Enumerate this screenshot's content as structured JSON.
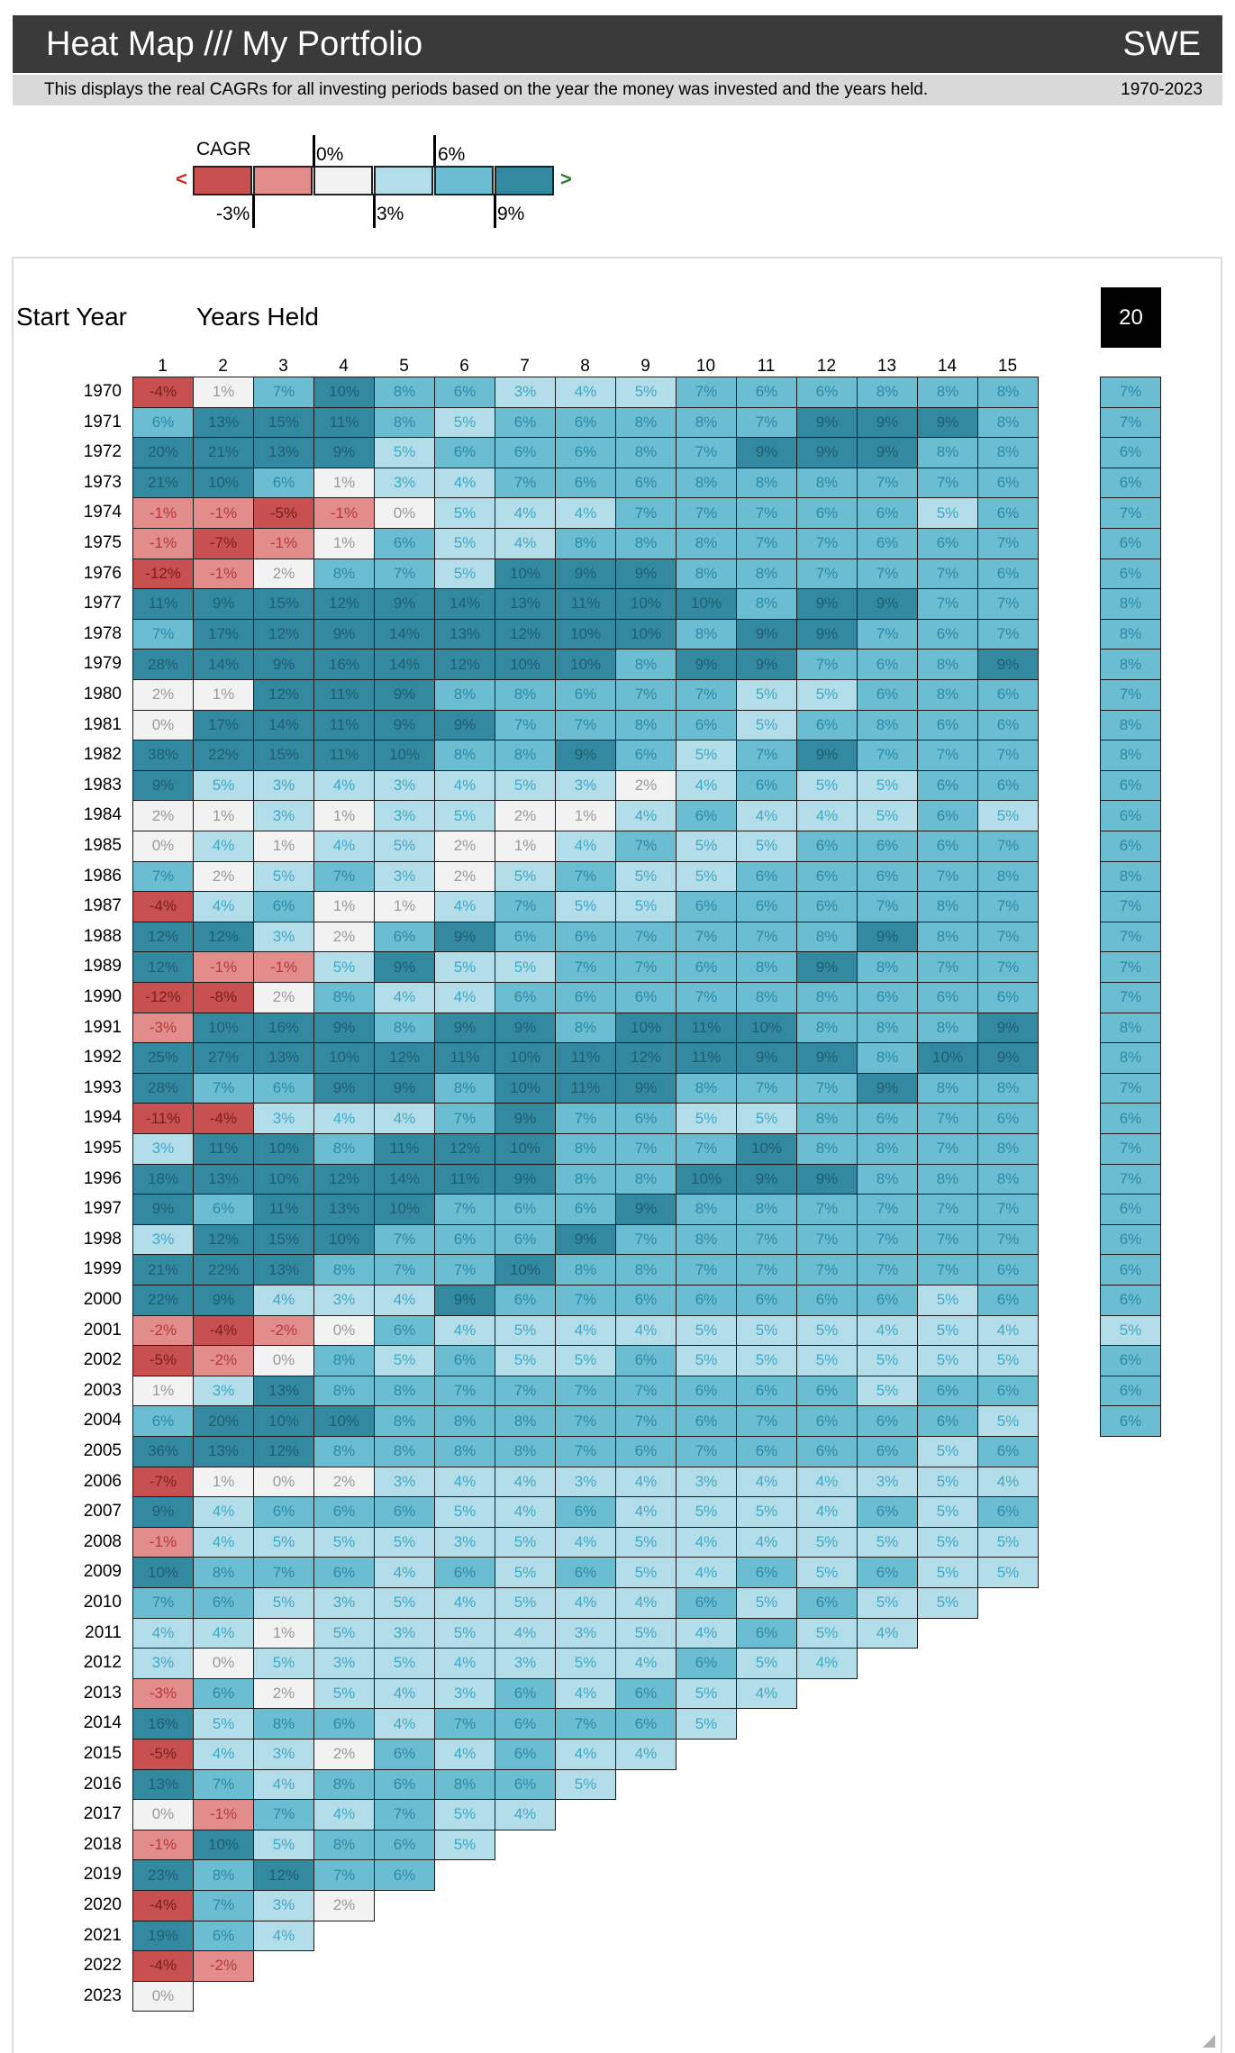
{
  "header": {
    "title": "Heat Map /// My Portfolio",
    "country": "SWE"
  },
  "subheader": {
    "description": "This displays the real CAGRs for all investing periods based on the year the money was invested and the years held.",
    "year_range": "1970-2023"
  },
  "legend": {
    "title": "CAGR",
    "left_arrow": "<",
    "right_arrow": ">",
    "top_labels": [
      "0%",
      "6%"
    ],
    "bottom_labels": [
      "-3%",
      "3%",
      "9%"
    ],
    "colors": [
      "#c85050",
      "#e38c8c",
      "#f2f2f2",
      "#b3dde8",
      "#6bbdd2",
      "#33899f"
    ]
  },
  "labels": {
    "start_year": "Start Year",
    "years_held": "Years Held"
  },
  "period_badge": "20",
  "chart_data": {
    "type": "heatmap",
    "title": "Heat Map /// My Portfolio",
    "xlabel": "Years Held",
    "ylabel": "Start Year",
    "col_headers": [
      "1",
      "2",
      "3",
      "4",
      "5",
      "6",
      "7",
      "8",
      "9",
      "10",
      "11",
      "12",
      "13",
      "14",
      "15"
    ],
    "rows": [
      {
        "year": "1970",
        "values": [
          -4,
          1,
          7,
          10,
          8,
          6,
          3,
          4,
          5,
          7,
          6,
          6,
          8,
          8,
          8
        ]
      },
      {
        "year": "1971",
        "values": [
          6,
          13,
          15,
          11,
          8,
          5,
          6,
          6,
          8,
          8,
          7,
          9,
          9,
          9,
          8
        ]
      },
      {
        "year": "1972",
        "values": [
          20,
          21,
          13,
          9,
          5,
          6,
          6,
          6,
          8,
          7,
          9,
          9,
          9,
          8,
          8
        ]
      },
      {
        "year": "1973",
        "values": [
          21,
          10,
          6,
          1,
          3,
          4,
          7,
          6,
          6,
          8,
          8,
          8,
          7,
          7,
          6
        ]
      },
      {
        "year": "1974",
        "values": [
          -1,
          -1,
          -5,
          -1,
          0,
          5,
          4,
          4,
          7,
          7,
          7,
          6,
          6,
          5,
          6
        ]
      },
      {
        "year": "1975",
        "values": [
          -1,
          -7,
          -1,
          1,
          6,
          5,
          4,
          8,
          8,
          8,
          7,
          7,
          6,
          6,
          7
        ]
      },
      {
        "year": "1976",
        "values": [
          -12,
          -1,
          2,
          8,
          7,
          5,
          10,
          9,
          9,
          8,
          8,
          7,
          7,
          7,
          6
        ]
      },
      {
        "year": "1977",
        "values": [
          11,
          9,
          15,
          12,
          9,
          14,
          13,
          11,
          10,
          10,
          8,
          9,
          9,
          7,
          7
        ]
      },
      {
        "year": "1978",
        "values": [
          7,
          17,
          12,
          9,
          14,
          13,
          12,
          10,
          10,
          8,
          9,
          9,
          7,
          6,
          7
        ]
      },
      {
        "year": "1979",
        "values": [
          28,
          14,
          9,
          16,
          14,
          12,
          10,
          10,
          8,
          9,
          9,
          7,
          6,
          8,
          9
        ]
      },
      {
        "year": "1980",
        "values": [
          2,
          1,
          12,
          11,
          9,
          8,
          8,
          6,
          7,
          7,
          5,
          5,
          6,
          8,
          6
        ]
      },
      {
        "year": "1981",
        "values": [
          0,
          17,
          14,
          11,
          9,
          9,
          7,
          7,
          8,
          6,
          5,
          6,
          8,
          6,
          6
        ]
      },
      {
        "year": "1982",
        "values": [
          38,
          22,
          15,
          11,
          10,
          8,
          8,
          9,
          6,
          5,
          7,
          9,
          7,
          7,
          7
        ]
      },
      {
        "year": "1983",
        "values": [
          9,
          5,
          3,
          4,
          3,
          4,
          5,
          3,
          2,
          4,
          6,
          5,
          5,
          6,
          6
        ]
      },
      {
        "year": "1984",
        "values": [
          2,
          1,
          3,
          1,
          3,
          5,
          2,
          1,
          4,
          6,
          4,
          4,
          5,
          6,
          5
        ]
      },
      {
        "year": "1985",
        "values": [
          0,
          4,
          1,
          4,
          5,
          2,
          1,
          4,
          7,
          5,
          5,
          6,
          6,
          6,
          7
        ]
      },
      {
        "year": "1986",
        "values": [
          7,
          2,
          5,
          7,
          3,
          2,
          5,
          7,
          5,
          5,
          6,
          6,
          6,
          7,
          8
        ]
      },
      {
        "year": "1987",
        "values": [
          -4,
          4,
          6,
          1,
          1,
          4,
          7,
          5,
          5,
          6,
          6,
          6,
          7,
          8,
          7
        ]
      },
      {
        "year": "1988",
        "values": [
          12,
          12,
          3,
          2,
          6,
          9,
          6,
          6,
          7,
          7,
          7,
          8,
          9,
          8,
          7
        ]
      },
      {
        "year": "1989",
        "values": [
          12,
          -1,
          -1,
          5,
          9,
          5,
          5,
          7,
          7,
          6,
          8,
          9,
          8,
          7,
          7
        ]
      },
      {
        "year": "1990",
        "values": [
          -12,
          -8,
          2,
          8,
          4,
          4,
          6,
          6,
          6,
          7,
          8,
          8,
          6,
          6,
          6
        ]
      },
      {
        "year": "1991",
        "values": [
          -3,
          10,
          16,
          9,
          8,
          9,
          9,
          8,
          10,
          11,
          10,
          8,
          8,
          8,
          9
        ]
      },
      {
        "year": "1992",
        "values": [
          25,
          27,
          13,
          10,
          12,
          11,
          10,
          11,
          12,
          11,
          9,
          9,
          8,
          10,
          9
        ]
      },
      {
        "year": "1993",
        "values": [
          28,
          7,
          6,
          9,
          9,
          8,
          10,
          11,
          9,
          8,
          7,
          7,
          9,
          8,
          8
        ]
      },
      {
        "year": "1994",
        "values": [
          -11,
          -4,
          3,
          4,
          4,
          7,
          9,
          7,
          6,
          5,
          5,
          8,
          6,
          7,
          6
        ]
      },
      {
        "year": "1995",
        "values": [
          3,
          11,
          10,
          8,
          11,
          12,
          10,
          8,
          7,
          7,
          10,
          8,
          8,
          7,
          8
        ]
      },
      {
        "year": "1996",
        "values": [
          18,
          13,
          10,
          12,
          14,
          11,
          9,
          8,
          8,
          10,
          9,
          9,
          8,
          8,
          8
        ]
      },
      {
        "year": "1997",
        "values": [
          9,
          6,
          11,
          13,
          10,
          7,
          6,
          6,
          9,
          8,
          8,
          7,
          7,
          7,
          7
        ]
      },
      {
        "year": "1998",
        "values": [
          3,
          12,
          15,
          10,
          7,
          6,
          6,
          9,
          7,
          8,
          7,
          7,
          7,
          7,
          7
        ]
      },
      {
        "year": "1999",
        "values": [
          21,
          22,
          13,
          8,
          7,
          7,
          10,
          8,
          8,
          7,
          7,
          7,
          7,
          7,
          6
        ]
      },
      {
        "year": "2000",
        "values": [
          22,
          9,
          4,
          3,
          4,
          9,
          6,
          7,
          6,
          6,
          6,
          6,
          6,
          5,
          6
        ]
      },
      {
        "year": "2001",
        "values": [
          -2,
          -4,
          -2,
          0,
          6,
          4,
          5,
          4,
          4,
          5,
          5,
          5,
          4,
          5,
          4
        ]
      },
      {
        "year": "2002",
        "values": [
          -5,
          -2,
          0,
          8,
          5,
          6,
          5,
          5,
          6,
          5,
          5,
          5,
          5,
          5,
          5
        ]
      },
      {
        "year": "2003",
        "values": [
          1,
          3,
          13,
          8,
          8,
          7,
          7,
          7,
          7,
          6,
          6,
          6,
          5,
          6,
          6
        ]
      },
      {
        "year": "2004",
        "values": [
          6,
          20,
          10,
          10,
          8,
          8,
          8,
          7,
          7,
          6,
          7,
          6,
          6,
          6,
          5
        ]
      },
      {
        "year": "2005",
        "values": [
          36,
          13,
          12,
          8,
          8,
          8,
          8,
          7,
          6,
          7,
          6,
          6,
          6,
          5,
          6
        ]
      },
      {
        "year": "2006",
        "values": [
          -7,
          1,
          0,
          2,
          3,
          4,
          4,
          3,
          4,
          3,
          4,
          4,
          3,
          5,
          4
        ]
      },
      {
        "year": "2007",
        "values": [
          9,
          4,
          6,
          6,
          6,
          5,
          4,
          6,
          4,
          5,
          5,
          4,
          6,
          5,
          6
        ]
      },
      {
        "year": "2008",
        "values": [
          -1,
          4,
          5,
          5,
          5,
          3,
          5,
          4,
          5,
          4,
          4,
          5,
          5,
          5,
          5
        ]
      },
      {
        "year": "2009",
        "values": [
          10,
          8,
          7,
          6,
          4,
          6,
          5,
          6,
          5,
          4,
          6,
          5,
          6,
          5,
          5
        ]
      },
      {
        "year": "2010",
        "values": [
          7,
          6,
          5,
          3,
          5,
          4,
          5,
          4,
          4,
          6,
          5,
          6,
          5,
          5
        ]
      },
      {
        "year": "2011",
        "values": [
          4,
          4,
          1,
          5,
          3,
          5,
          4,
          3,
          5,
          4,
          6,
          5,
          4
        ]
      },
      {
        "year": "2012",
        "values": [
          3,
          0,
          5,
          3,
          5,
          4,
          3,
          5,
          4,
          6,
          5,
          4
        ]
      },
      {
        "year": "2013",
        "values": [
          -3,
          6,
          2,
          5,
          4,
          3,
          6,
          4,
          6,
          5,
          4
        ]
      },
      {
        "year": "2014",
        "values": [
          16,
          5,
          8,
          6,
          4,
          7,
          6,
          7,
          6,
          5
        ]
      },
      {
        "year": "2015",
        "values": [
          -5,
          4,
          3,
          2,
          6,
          4,
          6,
          4,
          4
        ]
      },
      {
        "year": "2016",
        "values": [
          13,
          7,
          4,
          8,
          6,
          8,
          6,
          5
        ]
      },
      {
        "year": "2017",
        "values": [
          0,
          -1,
          7,
          4,
          7,
          5,
          4
        ]
      },
      {
        "year": "2018",
        "values": [
          -1,
          10,
          5,
          8,
          6,
          5
        ]
      },
      {
        "year": "2019",
        "values": [
          23,
          8,
          12,
          7,
          6
        ]
      },
      {
        "year": "2020",
        "values": [
          -4,
          7,
          3,
          2
        ]
      },
      {
        "year": "2021",
        "values": [
          19,
          6,
          4
        ]
      },
      {
        "year": "2022",
        "values": [
          -4,
          -2
        ]
      },
      {
        "year": "2023",
        "values": [
          0
        ]
      }
    ],
    "period_years": 20,
    "period_values": [
      7,
      7,
      6,
      6,
      7,
      6,
      6,
      8,
      8,
      8,
      7,
      8,
      8,
      6,
      6,
      6,
      8,
      7,
      7,
      7,
      7,
      8,
      8,
      7,
      6,
      7,
      7,
      6,
      6,
      6,
      6,
      5,
      6,
      6,
      6
    ],
    "value_suffix": "%",
    "thresholds": [
      -3,
      0,
      3,
      6,
      9
    ]
  }
}
